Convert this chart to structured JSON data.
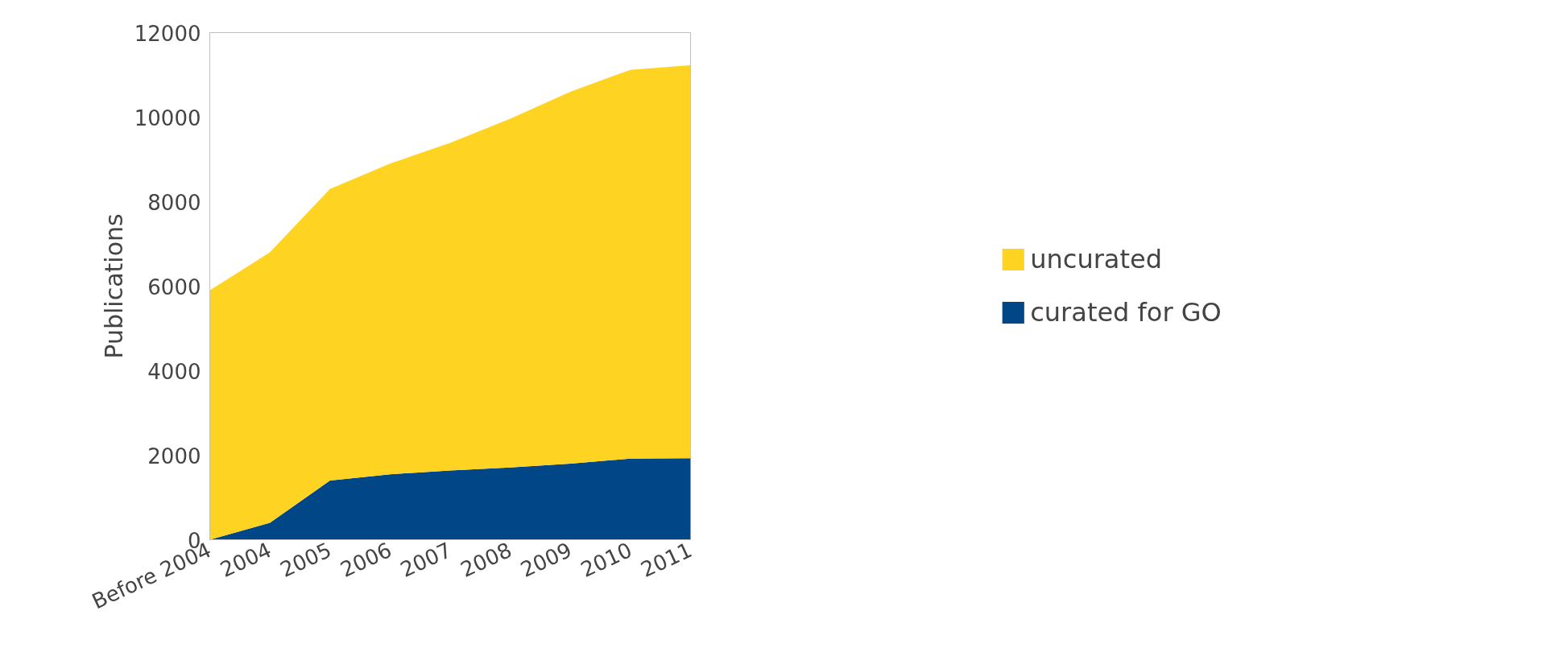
{
  "chart_data": {
    "type": "area",
    "stacked": true,
    "ylabel": "Publications",
    "categories": [
      "Before 2004",
      "2004",
      "2005",
      "2006",
      "2007",
      "2008",
      "2009",
      "2010",
      "2011"
    ],
    "series": [
      {
        "name": "curated for GO",
        "color": "#014687",
        "values": [
          0,
          400,
          1400,
          1550,
          1640,
          1710,
          1800,
          1920,
          1930
        ]
      },
      {
        "name": "uncurated",
        "color": "#fed322",
        "values": [
          5900,
          6400,
          6900,
          7350,
          7750,
          8250,
          8800,
          9200,
          9300
        ]
      }
    ],
    "ylim": [
      0,
      12000
    ],
    "yticks": [
      0,
      2000,
      4000,
      6000,
      8000,
      10000,
      12000
    ],
    "grid": false,
    "legend": "right"
  }
}
